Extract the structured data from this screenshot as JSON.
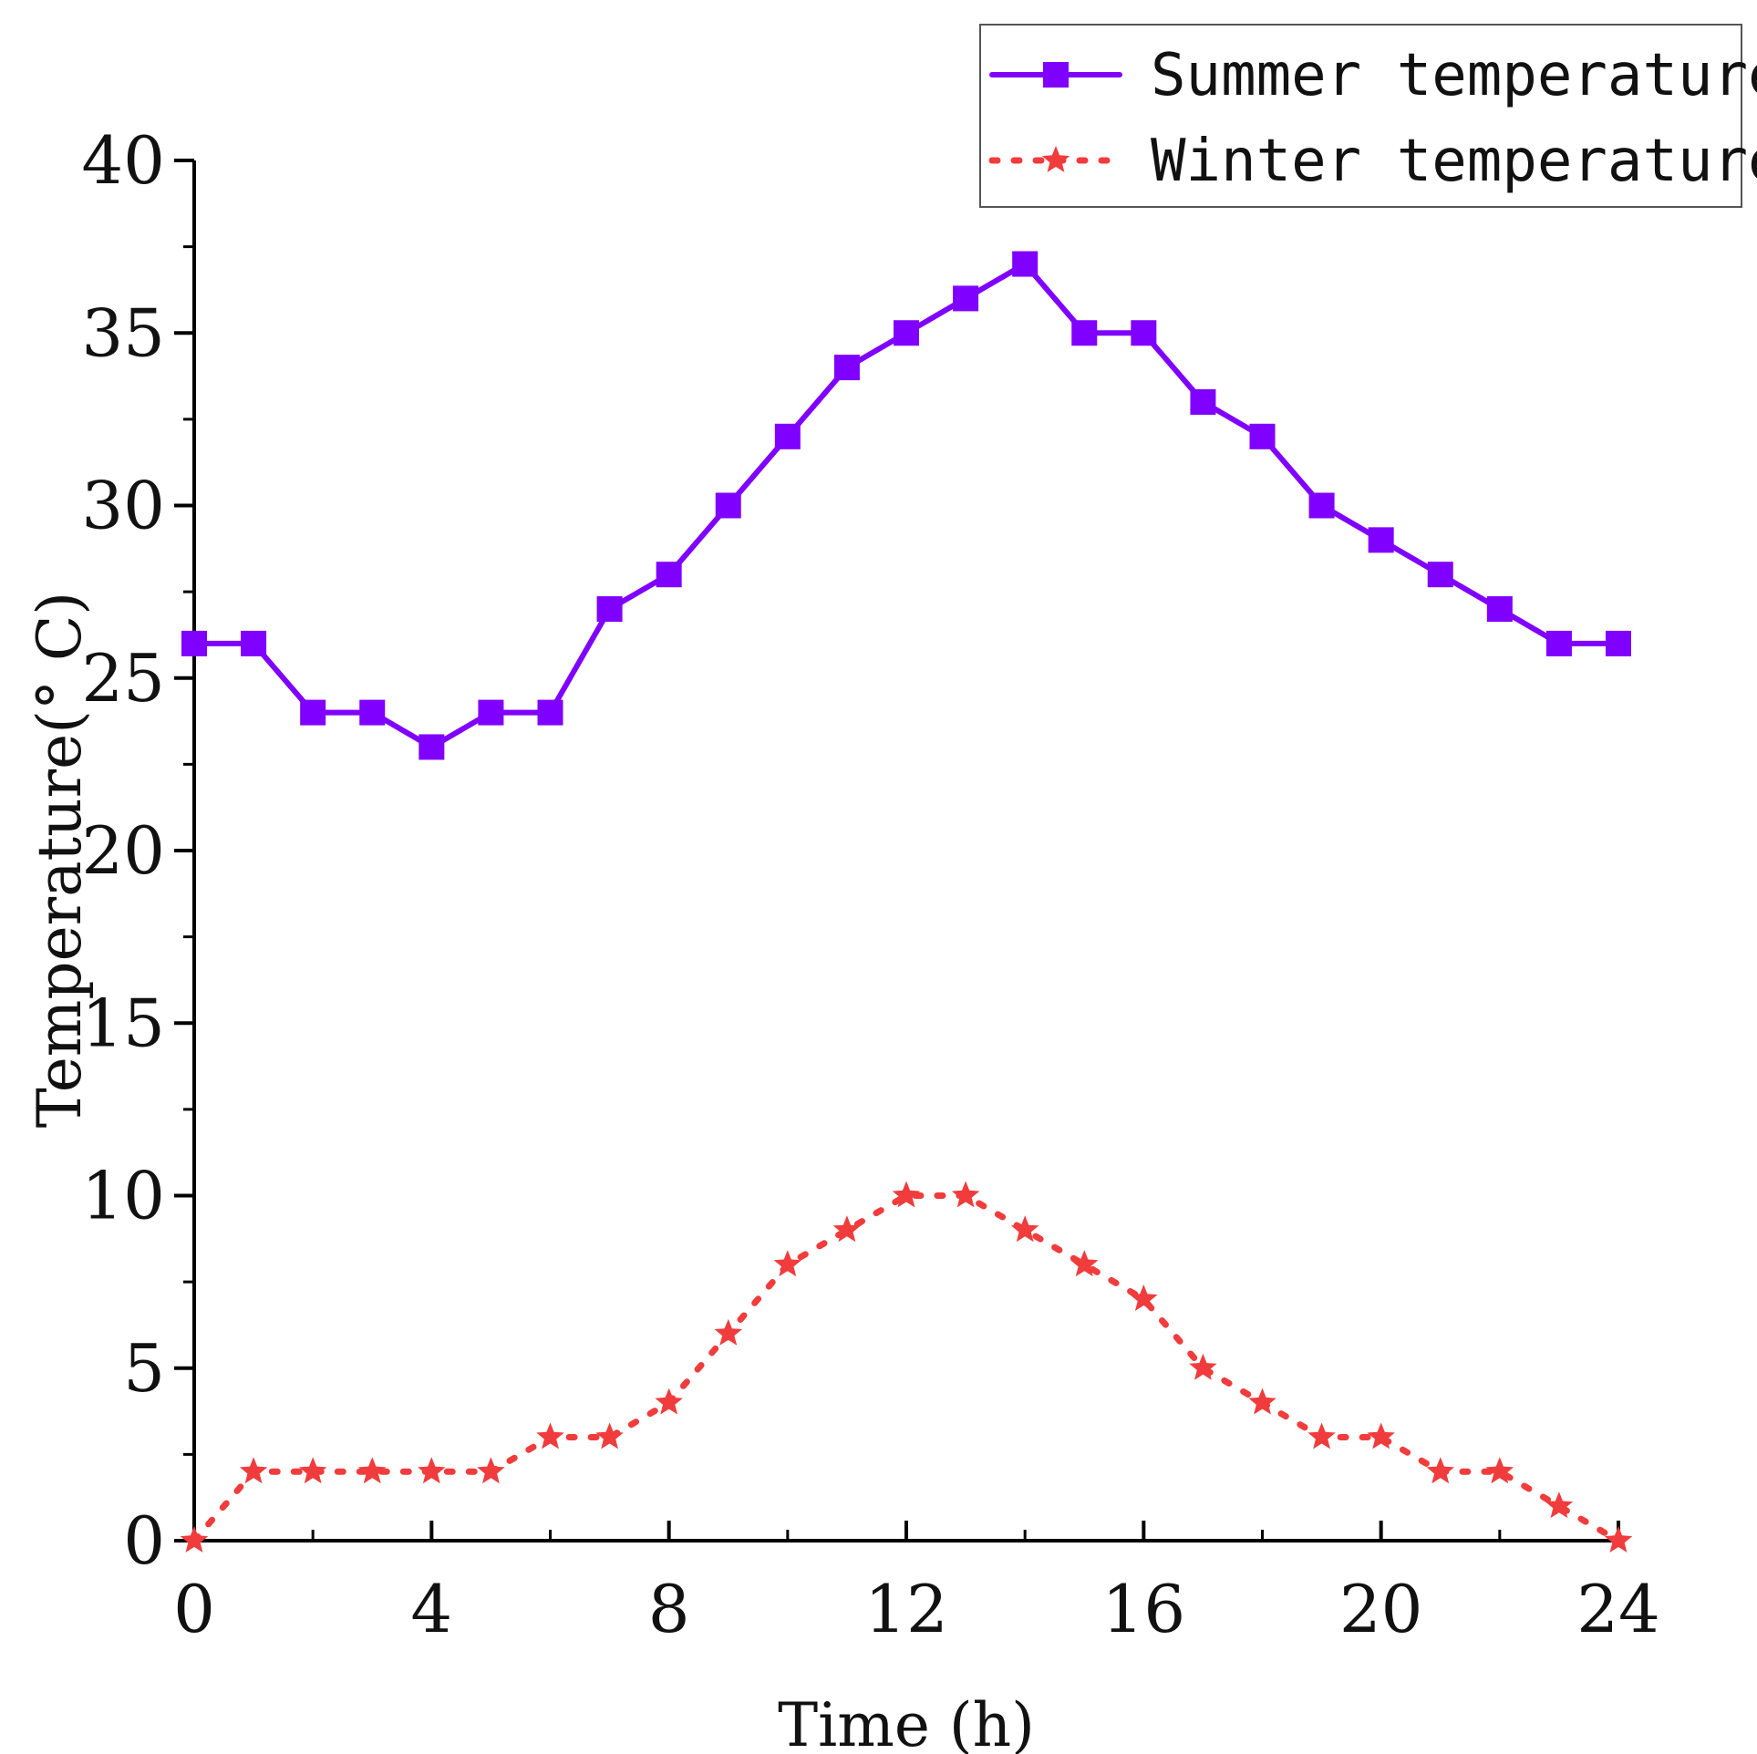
{
  "chart_data": {
    "type": "line",
    "title": "",
    "xlabel": "Time (h)",
    "ylabel": "Temperature(° C)",
    "xlim": [
      0,
      24
    ],
    "ylim": [
      0,
      40
    ],
    "xticks": [
      0,
      4,
      8,
      12,
      16,
      20,
      24
    ],
    "yticks": [
      0,
      5,
      10,
      15,
      20,
      25,
      30,
      35,
      40
    ],
    "grid": false,
    "legend_position": "top-right",
    "x": [
      0,
      1,
      2,
      3,
      4,
      5,
      6,
      7,
      8,
      9,
      10,
      11,
      12,
      13,
      14,
      15,
      16,
      17,
      18,
      19,
      20,
      21,
      22,
      23,
      24
    ],
    "series": [
      {
        "name": "Summer temperature",
        "color": "#7f00ff",
        "line_style": "solid",
        "marker": "square",
        "values": [
          26,
          26,
          24,
          24,
          23,
          24,
          24,
          27,
          28,
          30,
          32,
          34,
          35,
          36,
          37,
          35,
          35,
          33,
          32,
          30,
          29,
          28,
          27,
          26,
          26
        ]
      },
      {
        "name": "Winter temperature",
        "color": "#f03c3c",
        "line_style": "dotted",
        "marker": "star",
        "values": [
          0,
          2,
          2,
          2,
          2,
          2,
          3,
          3,
          4,
          6,
          8,
          9,
          10,
          10,
          9,
          8,
          7,
          5,
          4,
          3,
          3,
          2,
          2,
          1,
          0
        ]
      }
    ]
  }
}
